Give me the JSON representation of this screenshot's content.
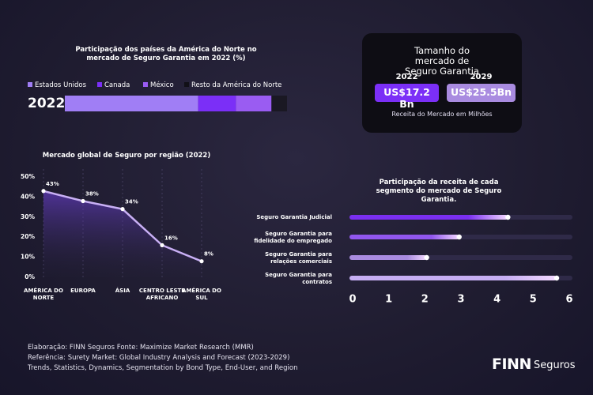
{
  "chart_data": [
    {
      "type": "stacked-bar",
      "title": "Participação dos países da América do Norte no mercado de Seguro Garantia em 2022 (%)",
      "categories": [
        "2022"
      ],
      "xlim": [
        0,
        100
      ],
      "series": [
        {
          "name": "Estados Unidos",
          "color": "#a07ef5",
          "values": [
            60
          ]
        },
        {
          "name": "Canada",
          "color": "#7b2ff7",
          "values": [
            17
          ]
        },
        {
          "name": "México",
          "color": "#9a5cf2",
          "values": [
            16
          ]
        },
        {
          "name": "Resto da América do Norte",
          "color": "#1a1823",
          "values": [
            7
          ]
        }
      ]
    },
    {
      "type": "line",
      "title": "Mercado global de Seguro por região (2022)",
      "categories": [
        "AMÉRICA DO NORTE",
        "EUROPA",
        "ÁSIA",
        "CENTRO LESTE AFRICANO",
        "AMÉRICA DO SUL"
      ],
      "values": [
        43,
        38,
        34,
        16,
        8
      ],
      "value_labels": [
        "43%",
        "38%",
        "34%",
        "16%",
        "8%"
      ],
      "color": "#c9b0f5",
      "ylim": [
        0,
        50
      ],
      "yticks": [
        {
          "value": 0,
          "label": "0%"
        },
        {
          "value": 10,
          "label": "10%"
        },
        {
          "value": 20,
          "label": "20%"
        },
        {
          "value": 30,
          "label": "30%"
        },
        {
          "value": 40,
          "label": "40%"
        },
        {
          "value": 50,
          "label": "50%"
        }
      ],
      "grid": true
    },
    {
      "type": "hbar",
      "title": "Participação da receita de cada segmento do mercado de Seguro Garantia.",
      "categories": [
        "Seguro Garantia Judicial",
        "Seguro Garantia para fidelidade do empregado",
        "Seguro Garantia para relações comerciais",
        "Seguro Garantia para contratos"
      ],
      "values": [
        4.3,
        2.95,
        2.05,
        5.65
      ],
      "colors": [
        "#7a2ff0",
        "#9157ee",
        "#a98be0",
        "#c6aef3"
      ],
      "xlim": [
        0,
        6
      ],
      "xticks": [
        0,
        1,
        2,
        3,
        4,
        5,
        6
      ]
    }
  ],
  "market_box": {
    "title": "Tamanho do mercado de Seguro Garantia",
    "items": [
      {
        "year": "2022",
        "value": "US$17.2 Bn"
      },
      {
        "year": "2029",
        "value": "US$25.5Bn"
      }
    ],
    "note": "Receita do Mercado em Milhões"
  },
  "footer": {
    "source": "Elaboração: FINN Seguros Fonte: Maximize Market Research (MMR)",
    "reference": "Referência: Surety Market: Global Industry Analysis and Forecast (2023-2029) Trends, Statistics, Dynamics, Segmentation by Bond Type, End-User, and Region"
  },
  "logo": {
    "brand": "FINN",
    "suffix": "Seguros"
  }
}
